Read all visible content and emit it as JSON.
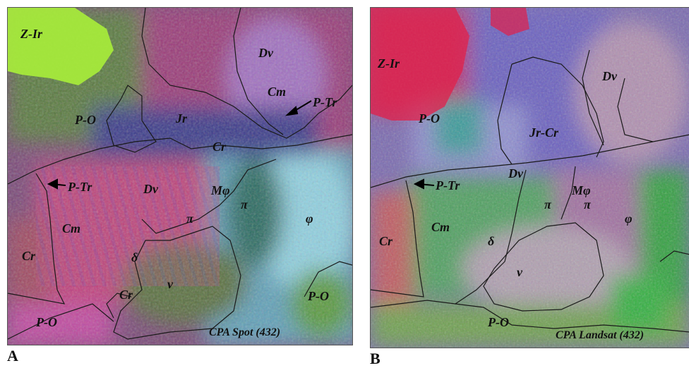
{
  "panels": [
    {
      "id": "A",
      "panel_label": "A",
      "caption": "CPA  Spot (432)",
      "units": [
        "Z-Ir",
        "P-O",
        "Jr",
        "Dv",
        "Cm",
        "P-Tr",
        "Cr",
        "P-Tr",
        "Dv",
        "Mφ",
        "π",
        "π",
        "φ",
        "Cm",
        "Cr",
        "δ",
        "ν",
        "Cr",
        "P-O",
        "P-O"
      ]
    },
    {
      "id": "B",
      "panel_label": "B",
      "caption": "CPA  Landsat (432)",
      "units": [
        "Z-Ir",
        "P-O",
        "Jr-Cr",
        "Dv",
        "Dv",
        "P-Tr",
        "Mφ",
        "π",
        "π",
        "φ",
        "Cm",
        "Cr",
        "δ",
        "ν",
        "P-O"
      ]
    }
  ],
  "colors": {
    "magenta": "#c0408a",
    "purple": "#7a55b8",
    "green": "#3aa040",
    "cyan": "#7fd0e0",
    "lime": "#b4ff3c",
    "red": "#e0204a"
  }
}
